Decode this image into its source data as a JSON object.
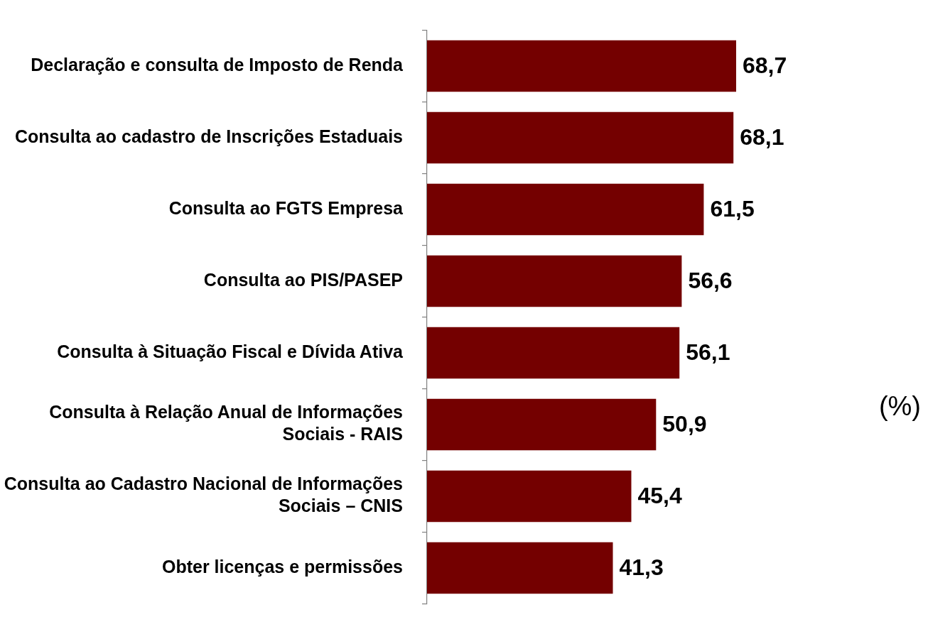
{
  "chart_data": {
    "type": "bar",
    "orientation": "horizontal",
    "categories": [
      "Declaração e consulta de Imposto de Renda",
      "Consulta ao cadastro de Inscrições Estaduais",
      "Consulta ao FGTS Empresa",
      "Consulta ao PIS/PASEP",
      "Consulta à Situação Fiscal e Dívida Ativa",
      "Consulta à Relação Anual de Informações Sociais - RAIS",
      "Consulta ao Cadastro Nacional de Informações Sociais – CNIS",
      "Obter licenças e permissões"
    ],
    "values": [
      68.7,
      68.1,
      61.5,
      56.6,
      56.1,
      50.9,
      45.4,
      41.3
    ],
    "value_labels": [
      "68,7",
      "68,1",
      "61,5",
      "56,6",
      "56,1",
      "50,9",
      "45,4",
      "41,3"
    ],
    "color": "#740000",
    "annotations": [
      "(%)"
    ]
  }
}
